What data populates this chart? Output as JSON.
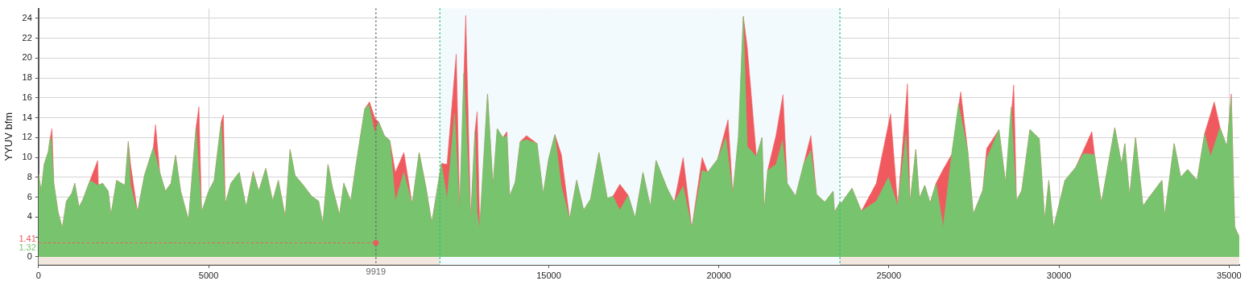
{
  "chart_data": {
    "type": "area",
    "ylabel": "YYUV bfm",
    "xlim": [
      0,
      35300
    ],
    "xticks": [
      0,
      5000,
      15000,
      20000,
      25000,
      30000,
      35000
    ],
    "ylim": [
      -0.8,
      25
    ],
    "yticks": [
      0,
      {
        "value": 2,
        "label": null
      },
      4,
      6,
      8,
      10,
      12,
      14,
      16,
      18,
      20,
      22,
      24
    ],
    "grid": true,
    "legend": false,
    "bands": [
      {
        "axis": "y",
        "from": -0.8,
        "to": 0,
        "color": "#f2e8df"
      },
      {
        "axis": "x",
        "from": 11800,
        "to": 23560,
        "color": "#f2fafd"
      }
    ],
    "ref_lines": [
      {
        "axis": "x",
        "value": 9919,
        "label": "9919",
        "color": "#666666",
        "line_style": "dotted"
      },
      {
        "axis": "x",
        "value": 11800,
        "color": "#22c47a",
        "line_style": "dotted"
      },
      {
        "axis": "x",
        "value": 23560,
        "color": "#22c47a",
        "line_style": "dotted"
      }
    ],
    "annotations": [
      {
        "text": "1.41",
        "x": 9919,
        "y": 1.41
      },
      {
        "text": "1.32",
        "x": 9919,
        "y": 1.32
      }
    ],
    "series": [
      {
        "color": "#f05a5f",
        "x": [
          0,
          80,
          165,
          290,
          330,
          395,
          450,
          575,
          700,
          820,
          980,
          1065,
          1190,
          1310,
          1515,
          1740,
          1760,
          1885,
          2050,
          2130,
          2295,
          2540,
          2640,
          2705,
          2910,
          3115,
          3375,
          3440,
          3565,
          3730,
          3895,
          4030,
          4180,
          4410,
          4630,
          4715,
          4795,
          5000,
          5165,
          5370,
          5435,
          5490,
          5655,
          5900,
          6105,
          6310,
          6475,
          6680,
          6885,
          7050,
          7255,
          7395,
          7540,
          7785,
          8030,
          8235,
          8360,
          8510,
          8645,
          8850,
          8975,
          9180,
          9300,
          9590,
          9730,
          9895,
          10000,
          10165,
          10330,
          10490,
          10740,
          10985,
          11190,
          11395,
          11560,
          11845,
          12010,
          12280,
          12380,
          12560,
          12705,
          12830,
          12895,
          12970,
          13200,
          13360,
          13485,
          13650,
          13770,
          13850,
          14015,
          14160,
          14345,
          14655,
          14835,
          15000,
          15180,
          15370,
          15615,
          15820,
          16025,
          16230,
          16475,
          16720,
          16885,
          17090,
          17335,
          17540,
          17770,
          17990,
          18155,
          18480,
          18690,
          18950,
          19205,
          19510,
          19670,
          19960,
          20270,
          20410,
          20575,
          20720,
          20835,
          21105,
          21270,
          21330,
          21435,
          21680,
          21885,
          22010,
          22255,
          22500,
          22705,
          22870,
          23115,
          23360,
          23400,
          23565,
          23600,
          23915,
          24190,
          24630,
          25050,
          25260,
          25545,
          25620,
          25790,
          25895,
          26055,
          26210,
          26385,
          26595,
          26845,
          27110,
          27320,
          27480,
          27760,
          27875,
          28235,
          28430,
          28670,
          28750,
          28905,
          29145,
          29420,
          29580,
          29700,
          29835,
          30175,
          30490,
          30965,
          31045,
          31245,
          31640,
          31840,
          31935,
          32075,
          32250,
          32470,
          32630,
          33025,
          33105,
          33385,
          33580,
          33780,
          34060,
          34280,
          34565,
          34735,
          34935,
          35065,
          35165,
          35300
        ],
        "values": [
          8.4,
          6.6,
          9.3,
          10.6,
          11.7,
          12.9,
          7.4,
          4.5,
          2.9,
          5.6,
          6.4,
          7.4,
          5.0,
          5.8,
          7.7,
          9.7,
          7.2,
          7.4,
          6.6,
          4.2,
          7.7,
          7.2,
          11.6,
          9.3,
          4.5,
          8.2,
          11.0,
          13.3,
          8.5,
          6.6,
          7.4,
          10.2,
          6.6,
          3.7,
          13.0,
          15.1,
          4.5,
          6.6,
          7.7,
          13.6,
          14.3,
          5.3,
          7.4,
          8.5,
          5.0,
          8.6,
          6.6,
          8.9,
          5.6,
          7.7,
          4.0,
          10.8,
          8.2,
          7.2,
          6.1,
          5.6,
          3.3,
          9.3,
          6.9,
          4.2,
          7.4,
          5.6,
          8.5,
          14.9,
          15.6,
          13.9,
          13.6,
          12.2,
          11.7,
          8.5,
          10.5,
          5.3,
          10.5,
          6.9,
          3.4,
          9.4,
          9.3,
          20.4,
          4.5,
          24.3,
          3.7,
          12.6,
          14.6,
          2.9,
          16.4,
          7.1,
          12.9,
          12.0,
          12.6,
          6.1,
          7.5,
          11.6,
          12.2,
          11.4,
          6.3,
          9.9,
          12.3,
          10.3,
          3.8,
          7.7,
          4.7,
          5.8,
          10.5,
          5.9,
          6.1,
          7.3,
          6.2,
          3.9,
          8.5,
          5.0,
          9.7,
          6.9,
          5.5,
          10.0,
          2.9,
          10.0,
          8.5,
          9.8,
          13.8,
          6.3,
          12.0,
          24.2,
          21.1,
          10.1,
          12.0,
          4.5,
          8.7,
          12.2,
          16.3,
          7.4,
          6.1,
          9.4,
          12.2,
          6.3,
          5.5,
          6.6,
          4.5,
          5.5,
          5.4,
          6.9,
          4.6,
          7.4,
          14.4,
          5.1,
          17.4,
          5.4,
          10.8,
          5.9,
          7.2,
          5.4,
          7.4,
          8.8,
          10.3,
          16.6,
          10.6,
          4.3,
          6.7,
          10.9,
          12.8,
          7.4,
          17.3,
          5.6,
          6.7,
          12.8,
          11.9,
          3.7,
          7.7,
          2.9,
          7.7,
          9.0,
          12.6,
          10.3,
          5.4,
          13.0,
          9.3,
          11.4,
          6.1,
          12.0,
          5.1,
          5.9,
          7.7,
          4.1,
          11.4,
          8.0,
          8.8,
          7.7,
          12.4,
          15.6,
          13.0,
          11.1,
          16.4,
          3.0,
          2.0
        ]
      },
      {
        "color": "#78c46e",
        "x": [
          0,
          80,
          165,
          290,
          330,
          370,
          450,
          575,
          700,
          820,
          980,
          1065,
          1190,
          1310,
          1515,
          1740,
          1885,
          2050,
          2130,
          2295,
          2540,
          2640,
          2705,
          2910,
          3115,
          3375,
          3565,
          3730,
          3895,
          4030,
          4180,
          4410,
          4630,
          4795,
          5000,
          5165,
          5370,
          5490,
          5655,
          5900,
          6105,
          6310,
          6475,
          6680,
          6885,
          7050,
          7255,
          7395,
          7540,
          7785,
          8030,
          8235,
          8360,
          8510,
          8645,
          8850,
          8975,
          9180,
          9300,
          9590,
          9715,
          9880,
          10000,
          10165,
          10330,
          10490,
          10740,
          10985,
          11190,
          11395,
          11560,
          11845,
          12010,
          12230,
          12380,
          12500,
          12705,
          12830,
          12895,
          12970,
          13200,
          13360,
          13485,
          13650,
          13770,
          13850,
          14015,
          14160,
          14345,
          14655,
          14835,
          15000,
          15180,
          15370,
          15615,
          15820,
          16025,
          16230,
          16475,
          16720,
          16885,
          17090,
          17335,
          17540,
          17770,
          17990,
          18155,
          18480,
          18690,
          18950,
          19205,
          19510,
          19670,
          19960,
          20205,
          20410,
          20575,
          20720,
          20835,
          21105,
          21270,
          21330,
          21435,
          21680,
          21870,
          22010,
          22255,
          22500,
          22705,
          22870,
          23115,
          23360,
          23400,
          23565,
          23600,
          23915,
          24190,
          24630,
          24985,
          25260,
          25500,
          25620,
          25790,
          25895,
          26055,
          26210,
          26385,
          26595,
          26845,
          27045,
          27320,
          27480,
          27760,
          27875,
          28235,
          28430,
          28590,
          28750,
          28905,
          29145,
          29420,
          29580,
          29700,
          29835,
          30175,
          30490,
          30715,
          31045,
          31245,
          31640,
          31840,
          31935,
          32075,
          32250,
          32470,
          32630,
          33025,
          33105,
          33385,
          33580,
          33780,
          34060,
          34280,
          34455,
          34735,
          34935,
          35065,
          35165,
          35300
        ],
        "values": [
          8.4,
          6.6,
          9.3,
          10.6,
          11.7,
          12.0,
          7.4,
          4.5,
          2.9,
          5.6,
          6.4,
          7.4,
          5.0,
          5.8,
          7.7,
          7.2,
          7.4,
          6.6,
          4.2,
          7.7,
          7.2,
          11.6,
          7.2,
          4.5,
          8.2,
          11.0,
          8.5,
          6.6,
          7.4,
          10.2,
          6.6,
          3.7,
          13.0,
          4.5,
          6.6,
          7.7,
          13.6,
          5.3,
          7.4,
          8.5,
          5.0,
          8.5,
          6.6,
          8.9,
          5.6,
          7.7,
          4.0,
          10.8,
          8.2,
          7.2,
          6.1,
          5.6,
          3.3,
          9.3,
          6.9,
          4.2,
          7.4,
          5.6,
          8.5,
          14.9,
          15.3,
          12.5,
          13.6,
          12.2,
          11.7,
          5.6,
          8.5,
          5.3,
          10.5,
          6.9,
          3.4,
          9.4,
          5.8,
          14.4,
          4.5,
          18.5,
          3.7,
          12.6,
          4.5,
          2.9,
          16.4,
          7.1,
          12.9,
          12.0,
          12.2,
          6.1,
          7.5,
          11.6,
          11.8,
          11.4,
          6.3,
          9.9,
          12.3,
          7.1,
          3.8,
          7.7,
          4.7,
          5.8,
          10.5,
          5.9,
          6.1,
          4.7,
          6.2,
          3.9,
          8.5,
          5.0,
          9.7,
          6.9,
          5.5,
          7.1,
          2.9,
          8.7,
          8.5,
          9.8,
          12.0,
          6.3,
          12.0,
          24.2,
          11.1,
          10.1,
          12.0,
          4.5,
          8.7,
          9.3,
          11.7,
          7.4,
          6.1,
          9.4,
          10.7,
          6.3,
          5.5,
          6.6,
          4.5,
          5.5,
          5.4,
          6.9,
          4.6,
          5.6,
          8.0,
          5.1,
          12.3,
          5.4,
          10.8,
          5.9,
          7.2,
          5.4,
          7.4,
          3.0,
          10.3,
          15.4,
          10.6,
          4.3,
          6.7,
          9.9,
          12.8,
          7.4,
          15.1,
          5.6,
          6.7,
          12.8,
          11.9,
          3.7,
          7.7,
          2.9,
          7.7,
          9.0,
          10.4,
          10.3,
          5.4,
          13.0,
          9.3,
          11.4,
          6.1,
          12.0,
          5.1,
          5.9,
          7.7,
          4.1,
          11.4,
          8.0,
          8.8,
          7.7,
          12.4,
          10.1,
          13.0,
          11.1,
          16.0,
          3.0,
          2.0
        ]
      }
    ]
  }
}
